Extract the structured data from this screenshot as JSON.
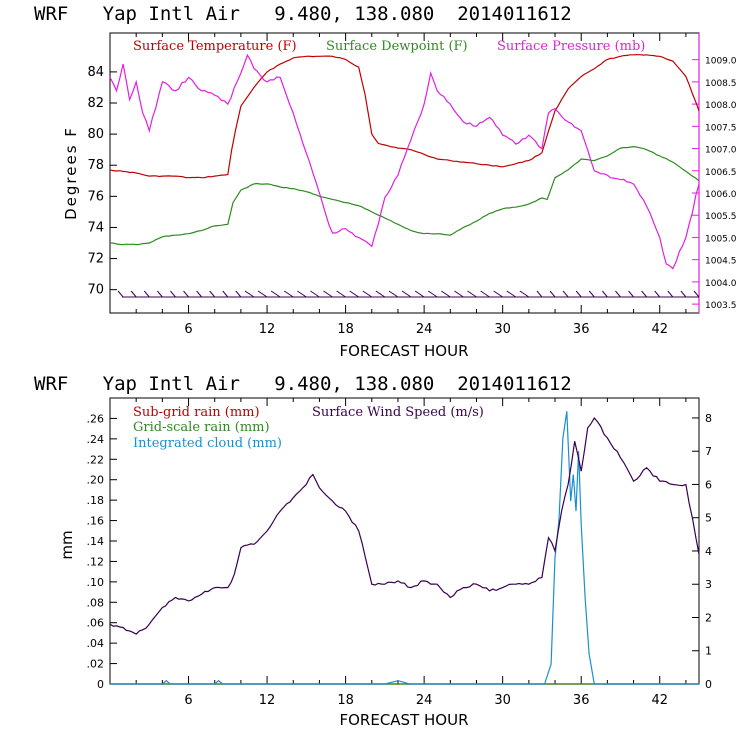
{
  "colors": {
    "temperature": "#c00000",
    "dewpoint": "#2e8b20",
    "pressure": "#e020e0",
    "subgrid_rain": "#c00000",
    "grid_rain": "#2e8b20",
    "cloud": "#1890d0",
    "wind": "#3a0050"
  },
  "chart_data": [
    {
      "type": "line",
      "title": "WRF   Yap Intl Air   9.480, 138.080  2014011612",
      "xlabel": "FORECAST HOUR",
      "ylabel": "Degrees F",
      "xlim": [
        0,
        45
      ],
      "ylim": [
        68.5,
        86.5
      ],
      "y2lim": [
        1003.3,
        1009.6
      ],
      "x_ticks": [
        6,
        12,
        18,
        24,
        30,
        36,
        42
      ],
      "y_ticks": [
        70,
        72,
        74,
        76,
        78,
        80,
        82,
        84
      ],
      "y2_ticks": [
        "1003.5",
        "1004.0",
        "1004.5",
        "1005.0",
        "1005.5",
        "1006.0",
        "1006.5",
        "1007.0",
        "1007.5",
        "1008.0",
        "1008.5",
        "1009.0"
      ],
      "legend": [
        "Surface Temperature (F)",
        "Surface Dewpoint (F)",
        "Surface Pressure (mb)"
      ],
      "wind_barbs": "bottom-row",
      "series": [
        {
          "name": "Surface Temperature (F)",
          "axis": "left",
          "x": [
            0,
            1,
            2,
            3,
            4,
            5,
            6,
            7,
            8,
            9,
            9.3,
            9.6,
            10,
            11,
            12,
            13,
            14,
            15,
            16,
            17,
            18,
            19,
            19.5,
            20,
            20.5,
            21,
            22,
            23,
            24,
            25,
            26,
            27,
            28,
            29,
            30,
            31,
            32,
            33,
            33.5,
            34,
            35,
            36,
            37,
            38,
            39,
            40,
            41,
            42,
            43,
            44,
            45
          ],
          "values": [
            77.7,
            77.6,
            77.5,
            77.3,
            77.3,
            77.3,
            77.2,
            77.2,
            77.3,
            77.4,
            79.0,
            80.3,
            81.8,
            83.0,
            84.0,
            84.5,
            84.9,
            85.0,
            85.0,
            85.0,
            84.8,
            84.3,
            82.5,
            80.0,
            79.4,
            79.3,
            79.1,
            79.0,
            78.7,
            78.4,
            78.3,
            78.2,
            78.1,
            78.0,
            77.9,
            78.1,
            78.3,
            78.8,
            80.2,
            81.5,
            82.9,
            83.7,
            84.2,
            84.8,
            85.0,
            85.1,
            85.1,
            85.0,
            84.7,
            83.7,
            81.5
          ]
        },
        {
          "name": "Surface Dewpoint (F)",
          "axis": "left",
          "x": [
            0,
            1,
            2,
            3,
            4,
            5,
            6,
            7,
            8,
            9,
            9.4,
            10,
            11,
            12,
            13,
            14,
            15,
            16,
            17,
            18,
            19,
            20,
            21,
            22,
            23,
            24,
            25,
            26,
            27,
            28,
            29,
            30,
            31,
            32,
            33,
            33.4,
            34,
            35,
            36,
            37,
            38,
            39,
            40,
            41,
            42,
            43,
            44,
            45
          ],
          "values": [
            73.0,
            72.9,
            72.9,
            73.0,
            73.4,
            73.5,
            73.6,
            73.8,
            74.1,
            74.2,
            75.6,
            76.4,
            76.8,
            76.8,
            76.6,
            76.5,
            76.3,
            76.0,
            75.8,
            75.6,
            75.4,
            75.0,
            74.6,
            74.2,
            73.8,
            73.6,
            73.6,
            73.5,
            74.0,
            74.4,
            74.9,
            75.2,
            75.3,
            75.5,
            75.9,
            75.8,
            77.2,
            77.7,
            78.4,
            78.3,
            78.6,
            79.1,
            79.2,
            79.0,
            78.6,
            78.2,
            77.6,
            77.0
          ]
        },
        {
          "name": "Surface Pressure (mb)",
          "axis": "right",
          "x": [
            0,
            0.5,
            1,
            1.5,
            2,
            2.5,
            3,
            4,
            5,
            6,
            7,
            8,
            9,
            10,
            10.5,
            11,
            12,
            13,
            14,
            15,
            16,
            16.5,
            17,
            18,
            19,
            20,
            20.5,
            21,
            22,
            23,
            24,
            24.5,
            25,
            26,
            27,
            28,
            29,
            30,
            31,
            32,
            33,
            33.5,
            34,
            35,
            36,
            37,
            38,
            39,
            40,
            41,
            42,
            42.5,
            43,
            44,
            45
          ],
          "values": [
            1008.6,
            1008.3,
            1008.9,
            1008.1,
            1008.5,
            1007.8,
            1007.4,
            1008.5,
            1008.3,
            1008.6,
            1008.3,
            1008.2,
            1008.0,
            1008.7,
            1009.1,
            1008.8,
            1008.5,
            1008.6,
            1007.8,
            1006.9,
            1006.0,
            1005.5,
            1005.1,
            1005.2,
            1005.0,
            1004.8,
            1005.3,
            1005.9,
            1006.4,
            1007.2,
            1008.0,
            1008.7,
            1008.3,
            1008.0,
            1007.6,
            1007.5,
            1007.7,
            1007.3,
            1007.1,
            1007.3,
            1007.0,
            1007.8,
            1007.9,
            1007.6,
            1007.4,
            1006.5,
            1006.4,
            1006.3,
            1006.2,
            1005.7,
            1005.0,
            1004.4,
            1004.3,
            1005.0,
            1006.2
          ]
        }
      ]
    },
    {
      "type": "line",
      "title": "WRF   Yap Intl Air   9.480, 138.080  2014011612",
      "xlabel": "FORECAST HOUR",
      "ylabel": "mm",
      "xlim": [
        0,
        45
      ],
      "ylim": [
        0,
        0.28
      ],
      "y2lim": [
        0,
        8.6
      ],
      "x_ticks": [
        6,
        12,
        18,
        24,
        30,
        36,
        42
      ],
      "y_ticks": [
        "0",
        ".02",
        ".04",
        ".06",
        ".08",
        ".10",
        ".12",
        ".14",
        ".16",
        ".18",
        ".20",
        ".22",
        ".24",
        ".26"
      ],
      "y2_ticks": [
        "0",
        "1",
        "2",
        "3",
        "4",
        "5",
        "6",
        "7",
        "8"
      ],
      "legend": [
        "Sub-grid rain (mm)",
        "Grid-scale rain (mm)",
        "Integrated cloud (mm)",
        "Surface Wind Speed (m/s)"
      ],
      "series": [
        {
          "name": "Sub-grid rain (mm)",
          "axis": "left",
          "x": [
            0,
            45
          ],
          "values": [
            0,
            0
          ]
        },
        {
          "name": "Grid-scale rain (mm)",
          "axis": "left",
          "x": [
            0,
            45
          ],
          "values": [
            0,
            0
          ]
        },
        {
          "name": "Integrated cloud (mm)",
          "axis": "right",
          "x": [
            0,
            4,
            4.3,
            4.6,
            8,
            8.3,
            8.6,
            21,
            22,
            23,
            33.2,
            33.7,
            34,
            34.3,
            34.6,
            34.9,
            35.2,
            35.4,
            35.6,
            35.8,
            36,
            36.3,
            36.6,
            37,
            45
          ],
          "values": [
            0,
            0,
            0.1,
            0,
            0,
            0.1,
            0,
            0,
            0.1,
            0,
            0,
            0.6,
            3.8,
            4.9,
            7.4,
            8.2,
            5.5,
            6.3,
            5.2,
            7.0,
            4.8,
            2.6,
            0.9,
            0,
            0
          ]
        },
        {
          "name": "Surface Wind Speed (m/s)",
          "axis": "right",
          "x": [
            0,
            1,
            2,
            3,
            4,
            5,
            6,
            7,
            8,
            9,
            9.5,
            10,
            11,
            12,
            13,
            14,
            15,
            15.5,
            16,
            17,
            18,
            19,
            20,
            21,
            22,
            23,
            24,
            25,
            26,
            27,
            28,
            29,
            30,
            31,
            32,
            33,
            33.5,
            34,
            34.5,
            35,
            35.5,
            36,
            36.5,
            37,
            38,
            39,
            40,
            41,
            42,
            43,
            44,
            45
          ],
          "values": [
            1.8,
            1.7,
            1.5,
            1.8,
            2.3,
            2.6,
            2.5,
            2.7,
            2.9,
            2.9,
            3.3,
            4.1,
            4.2,
            4.6,
            5.2,
            5.6,
            6.0,
            6.3,
            5.9,
            5.5,
            5.2,
            4.6,
            3.0,
            3.0,
            3.1,
            2.9,
            3.1,
            3.0,
            2.6,
            2.9,
            3.0,
            2.8,
            2.9,
            3.0,
            3.0,
            3.2,
            4.4,
            4.0,
            5.2,
            6.0,
            7.3,
            6.4,
            7.7,
            8.0,
            7.4,
            6.8,
            6.1,
            6.5,
            6.1,
            6.0,
            6.0,
            3.9
          ]
        }
      ]
    }
  ]
}
